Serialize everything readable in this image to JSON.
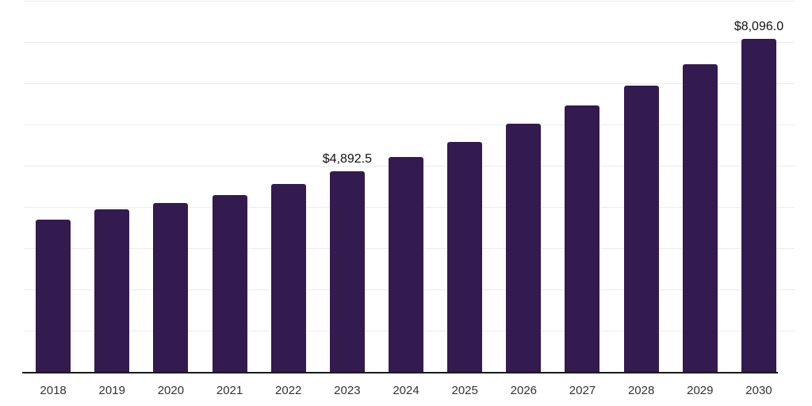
{
  "chart_data": {
    "type": "bar",
    "title": "",
    "xlabel": "",
    "ylabel": "",
    "categories": [
      "2018",
      "2019",
      "2020",
      "2021",
      "2022",
      "2023",
      "2024",
      "2025",
      "2026",
      "2027",
      "2028",
      "2029",
      "2030"
    ],
    "values": [
      3720,
      3960,
      4115,
      4310,
      4585,
      4892.5,
      5225,
      5600,
      6030,
      6485,
      6960,
      7480,
      8096
    ],
    "data_labels": [
      "",
      "",
      "",
      "",
      "",
      "$4,892.5",
      "",
      "",
      "",
      "",
      "",
      "",
      "$8,096.0"
    ],
    "ylim": [
      0,
      9000
    ],
    "gridline_step": 1000,
    "grid_visible": true,
    "legend": "none",
    "colors": {
      "bar": "#331a4f",
      "gridline": "#ececec",
      "axis_line": "#1a1a1a",
      "value_label_text": "#111111",
      "tick_label_text": "#333333",
      "background": "#ffffff"
    }
  }
}
